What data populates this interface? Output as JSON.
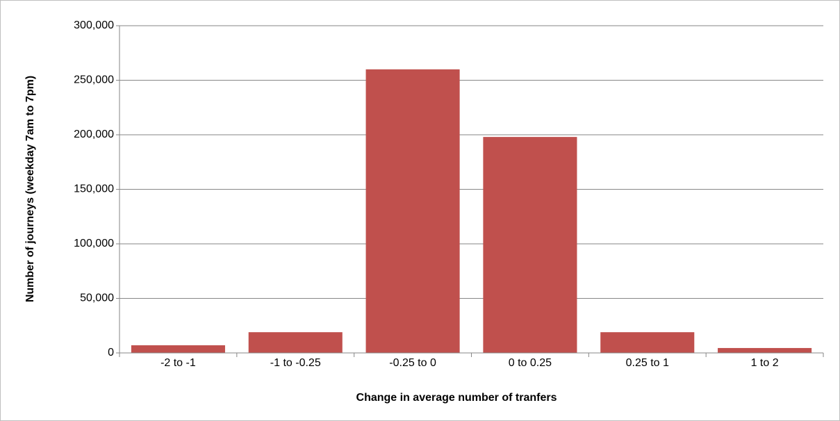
{
  "chart_data": {
    "type": "bar",
    "x_label": "Change in average number of tranfers",
    "y_label": "Number of journeys (weekday 7am to 7pm)",
    "categories": [
      "-2 to -1",
      "-1 to -0.25",
      "-0.25 to 0",
      "0 to 0.25",
      "0.25 to 1",
      "1 to 2"
    ],
    "values": [
      7000,
      19000,
      260000,
      198000,
      19000,
      4500
    ],
    "color": "#c0504d",
    "ylim": [
      0,
      300000
    ],
    "yticks": [
      0,
      {
        "value": 50000,
        "label": "50,000"
      },
      {
        "value": 100000,
        "label": "100,000"
      },
      {
        "value": 150000,
        "label": "150,000"
      },
      {
        "value": 200000,
        "label": "200,000"
      },
      {
        "value": 250000,
        "label": "250,000"
      },
      {
        "value": 300000,
        "label": "300,000"
      }
    ],
    "grid": true
  }
}
